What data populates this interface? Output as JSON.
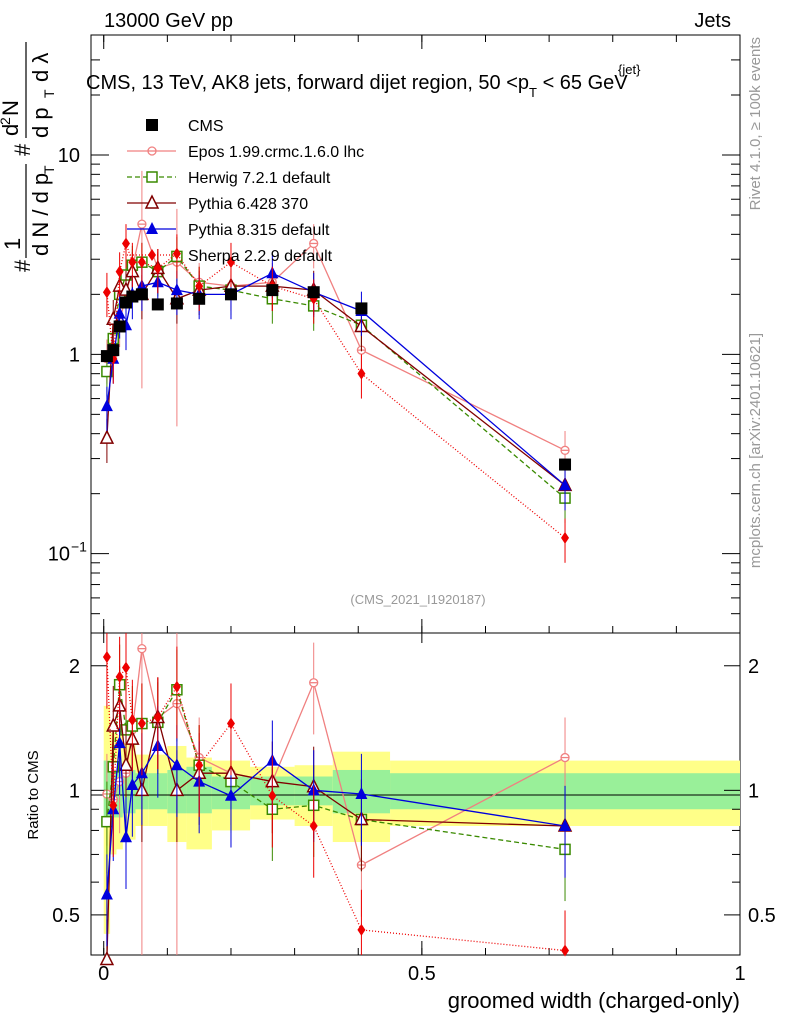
{
  "header": {
    "left": "13000 GeV pp",
    "right": "Jets"
  },
  "side_labels": {
    "top": "Rivet 4.1.0, ≥ 100k events",
    "bottom": "mcplots.cern.ch [arXiv:2401.10621]"
  },
  "chart_data": {
    "type": "line",
    "title": "CMS, 13 TeV, AK8 jets, forward dijet region, 50 < p_T^{jet} < 65 GeV",
    "title_parts": {
      "main": "CMS, 13 TeV, AK8 jets, forward dijet region, 50 <p",
      "sub": "T",
      "sup": "{jet}",
      "end": "< 65 GeV"
    },
    "ylabel_parts": {
      "hash": "#",
      "one": "1",
      "dN": "d N / d p",
      "T": "T",
      "d2N": "d",
      "sup2": "2",
      "N": "N",
      "dp": "d p",
      "dlambda": "d λ"
    },
    "xlabel": "groomed width (charged-only)",
    "ratio_ylabel": "Ratio to CMS",
    "watermark": "(CMS_2021_I1920187)",
    "xlim": [
      -0.02,
      1.0
    ],
    "ylim": [
      0.04,
      40
    ],
    "yscale": "log",
    "ratio_ylim": [
      0.4,
      2.4
    ],
    "x_ticks": [
      {
        "v": 0,
        "label": "0"
      },
      {
        "v": 0.5,
        "label": "0.5"
      },
      {
        "v": 1,
        "label": "1"
      }
    ],
    "y_ticks": [
      {
        "v": 10,
        "label": "10"
      },
      {
        "v": 1,
        "label": "1"
      },
      {
        "v": 0.1,
        "label": "10",
        "sup": "−1"
      }
    ],
    "ratio_ticks": [
      {
        "v": 2,
        "label": "2"
      },
      {
        "v": 1,
        "label": "1"
      },
      {
        "v": 0.5,
        "label": "0.5"
      }
    ],
    "bin_edges": [
      0,
      0.01,
      0.02,
      0.03,
      0.04,
      0.05,
      0.07,
      0.1,
      0.13,
      0.17,
      0.23,
      0.3,
      0.36,
      0.45,
      1.0
    ],
    "x": [
      0.005,
      0.015,
      0.025,
      0.035,
      0.045,
      0.06,
      0.085,
      0.115,
      0.15,
      0.2,
      0.265,
      0.33,
      0.405,
      0.725
    ],
    "data": {
      "name": "CMS",
      "values": [
        0.98,
        1.05,
        1.38,
        1.82,
        1.95,
        2.0,
        1.78,
        1.8,
        1.9,
        2.0,
        2.1,
        2.05,
        1.7,
        0.28
      ]
    },
    "bands": {
      "inner": [
        [
          0.84,
          1.18
        ],
        [
          0.86,
          1.16
        ],
        [
          0.86,
          1.14
        ],
        [
          0.88,
          1.12
        ],
        [
          0.88,
          1.12
        ],
        [
          0.9,
          1.1
        ],
        [
          0.9,
          1.1
        ],
        [
          0.88,
          1.12
        ],
        [
          0.88,
          1.14
        ],
        [
          0.9,
          1.08
        ],
        [
          0.92,
          1.08
        ],
        [
          0.92,
          1.08
        ],
        [
          0.88,
          1.12
        ],
        [
          0.9,
          1.1
        ]
      ],
      "outer": [
        [
          0.45,
          1.6
        ],
        [
          0.7,
          1.38
        ],
        [
          0.72,
          1.36
        ],
        [
          0.76,
          1.3
        ],
        [
          0.76,
          1.3
        ],
        [
          0.82,
          1.22
        ],
        [
          0.82,
          1.22
        ],
        [
          0.75,
          1.28
        ],
        [
          0.72,
          1.2
        ],
        [
          0.8,
          1.18
        ],
        [
          0.85,
          1.14
        ],
        [
          0.82,
          1.15
        ],
        [
          0.75,
          1.24
        ],
        [
          0.82,
          1.18
        ]
      ]
    },
    "series": [
      {
        "name": "Epos 1.99.crmc.1.6.0 lhc",
        "color": "#f08080",
        "dash": "",
        "marker": "cross-open",
        "values": [
          0.95,
          1.0,
          1.45,
          2.0,
          2.7,
          4.5,
          2.7,
          2.9,
          2.3,
          2.2,
          2.3,
          3.6,
          1.05,
          0.33
        ],
        "ratio": [
          0.98,
          0.95,
          1.05,
          1.1,
          1.4,
          2.2,
          1.5,
          1.62,
          1.2,
          1.1,
          1.05,
          1.82,
          0.66,
          1.2
        ]
      },
      {
        "name": "Herwig 7.2.1 default",
        "color": "#3a8a00",
        "dash": "5,3",
        "marker": "square-open",
        "values": [
          0.82,
          1.2,
          2.0,
          2.5,
          2.8,
          2.9,
          2.6,
          3.1,
          2.2,
          2.1,
          1.9,
          1.75,
          1.4,
          0.19
        ],
        "ratio": [
          0.84,
          1.14,
          1.8,
          1.4,
          1.43,
          1.45,
          1.46,
          1.75,
          1.15,
          1.05,
          0.9,
          0.92,
          0.85,
          0.72
        ]
      },
      {
        "name": "Pythia 6.428 370",
        "color": "#800000",
        "dash": "",
        "marker": "triangle-open",
        "values": [
          0.38,
          1.5,
          2.2,
          2.1,
          2.6,
          2.0,
          2.7,
          1.9,
          2.1,
          2.2,
          2.2,
          2.1,
          1.38,
          0.22
        ],
        "ratio": [
          0.39,
          1.43,
          1.6,
          1.15,
          1.33,
          1.0,
          1.5,
          1.0,
          1.1,
          1.1,
          1.05,
          1.02,
          0.85,
          0.82
        ]
      },
      {
        "name": "Pythia 8.315 default",
        "color": "#0000dd",
        "dash": "",
        "marker": "triangle-filled",
        "values": [
          0.55,
          0.95,
          1.6,
          1.4,
          2.0,
          2.2,
          2.3,
          2.1,
          2.0,
          2.0,
          2.55,
          2.05,
          1.65,
          0.22
        ],
        "ratio": [
          0.56,
          0.9,
          1.3,
          0.77,
          1.03,
          1.1,
          1.28,
          1.15,
          1.05,
          0.97,
          1.18,
          1.0,
          0.98,
          0.82
        ]
      },
      {
        "name": "Sherpa 2.2.9 default",
        "color": "#ee0000",
        "dash": "1,2",
        "marker": "diamond-filled",
        "values": [
          2.05,
          0.95,
          2.6,
          3.6,
          2.9,
          2.9,
          2.7,
          3.2,
          2.2,
          2.9,
          2.2,
          1.9,
          0.8,
          0.12
        ],
        "ratio": [
          2.1,
          0.92,
          1.88,
          1.98,
          1.48,
          1.45,
          1.5,
          1.78,
          1.15,
          1.45,
          0.97,
          0.82,
          0.46,
          0.41
        ]
      }
    ]
  }
}
